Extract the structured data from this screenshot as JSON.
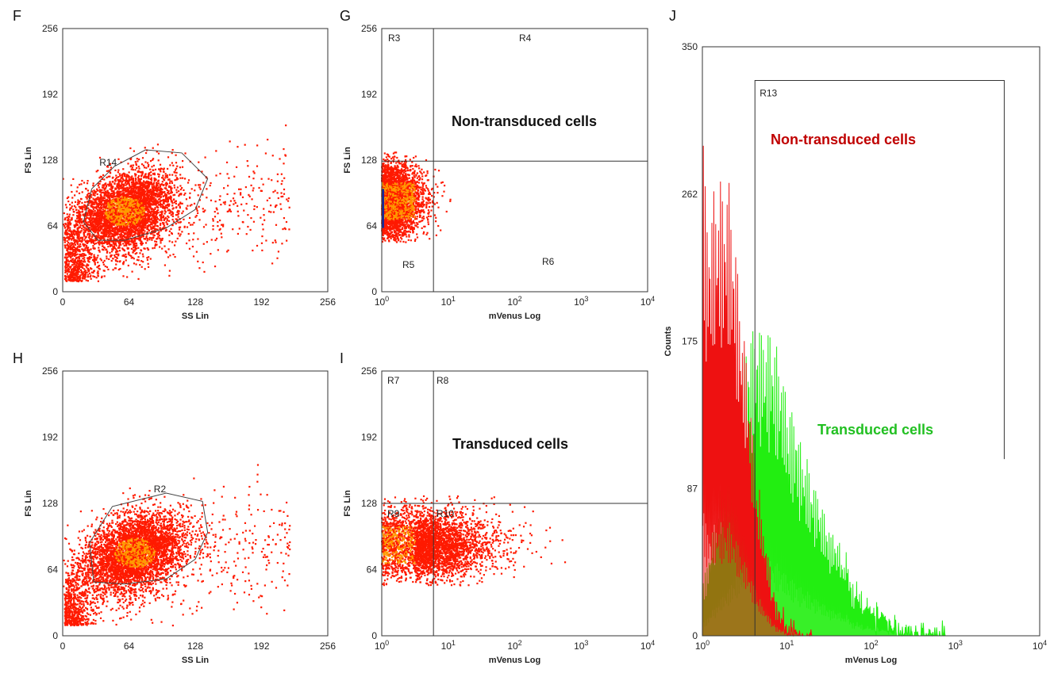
{
  "chart_data": [
    {
      "panel": "F",
      "type": "scatter",
      "xlabel": "SS Lin",
      "ylabel": "FS Lin",
      "xlim": [
        0,
        256
      ],
      "ylim": [
        0,
        256
      ],
      "x_scale": "linear",
      "xticks": [
        "0",
        "64",
        "128",
        "192",
        "256"
      ],
      "yticks": [
        "0",
        "64",
        "128",
        "192",
        "256"
      ],
      "gate": {
        "name": "R14",
        "shape": "polygon",
        "points": [
          [
            34,
            50
          ],
          [
            20,
            68
          ],
          [
            28,
            100
          ],
          [
            50,
            122
          ],
          [
            80,
            138
          ],
          [
            115,
            135
          ],
          [
            140,
            110
          ],
          [
            128,
            80
          ],
          [
            100,
            62
          ],
          [
            60,
            50
          ]
        ]
      },
      "dense_region": {
        "x_center": 60,
        "y_center": 78
      },
      "colors": {
        "points": "#ff1a00",
        "dense": "#ff9a00"
      }
    },
    {
      "panel": "G",
      "type": "scatter",
      "xlabel": "mVenus Log",
      "ylabel": "FS Lin",
      "xlim": [
        1,
        10000
      ],
      "ylim": [
        0,
        256
      ],
      "x_scale": "log",
      "xticks": [
        "10^0",
        "10^1",
        "10^2",
        "10^3",
        "10^4"
      ],
      "yticks": [
        "0",
        "64",
        "128",
        "192",
        "256"
      ],
      "quadrant_cut": {
        "x": 6,
        "y": 127
      },
      "quadrant_labels": [
        "R3",
        "R4",
        "R5",
        "R6"
      ],
      "annotation": "Non-transduced cells",
      "colors": {
        "points": "#ff1a00",
        "annotation": "#111111"
      }
    },
    {
      "panel": "H",
      "type": "scatter",
      "xlabel": "SS Lin",
      "ylabel": "FS Lin",
      "xlim": [
        0,
        256
      ],
      "ylim": [
        0,
        256
      ],
      "x_scale": "linear",
      "xticks": [
        "0",
        "64",
        "128",
        "192",
        "256"
      ],
      "yticks": [
        "0",
        "64",
        "128",
        "192",
        "256"
      ],
      "gate": {
        "name": "R2",
        "shape": "polygon",
        "points": [
          [
            30,
            52
          ],
          [
            26,
            90
          ],
          [
            48,
            125
          ],
          [
            100,
            138
          ],
          [
            135,
            130
          ],
          [
            140,
            100
          ],
          [
            128,
            74
          ],
          [
            100,
            55
          ],
          [
            60,
            50
          ]
        ]
      },
      "dense_region": {
        "x_center": 70,
        "y_center": 80
      },
      "colors": {
        "points": "#ff1a00",
        "dense": "#ff9a00"
      }
    },
    {
      "panel": "I",
      "type": "scatter",
      "xlabel": "mVenus Log",
      "ylabel": "FS Lin",
      "xlim": [
        1,
        10000
      ],
      "ylim": [
        0,
        256
      ],
      "x_scale": "log",
      "xticks": [
        "10^0",
        "10^1",
        "10^2",
        "10^3",
        "10^4"
      ],
      "yticks": [
        "0",
        "64",
        "128",
        "192",
        "256"
      ],
      "quadrant_cut": {
        "x": 6,
        "y": 128
      },
      "quadrant_labels": [
        "R7",
        "R8",
        "R9",
        "R10"
      ],
      "annotation": "Transduced cells",
      "colors": {
        "points": "#ff1a00",
        "annotation": "#111111"
      }
    },
    {
      "panel": "J",
      "type": "area",
      "xlabel": "mVenus Log",
      "ylabel": "Counts",
      "xlim": [
        1,
        10000
      ],
      "ylim": [
        0,
        350
      ],
      "x_scale": "log",
      "xticks": [
        "10^0",
        "10^1",
        "10^2",
        "10^3",
        "10^4"
      ],
      "yticks": [
        "0",
        "87",
        "175",
        "262",
        "350"
      ],
      "gate": {
        "name": "R13",
        "x_range": [
          4.2,
          3800
        ],
        "top": 330,
        "left_bottom": 0,
        "right_bottom": 105
      },
      "series": [
        {
          "name": "Non-transduced cells",
          "color": "#ee1111",
          "x": [
            1,
            1.1,
            1.25,
            1.4,
            1.6,
            1.8,
            2.0,
            2.3,
            2.6,
            3.0,
            3.5,
            4.0,
            4.6,
            5.3,
            6.0,
            7.0,
            8.0,
            10,
            12,
            15,
            20
          ],
          "y": [
            335,
            250,
            255,
            265,
            270,
            260,
            275,
            245,
            215,
            185,
            155,
            120,
            90,
            65,
            45,
            28,
            15,
            6,
            3,
            1,
            0
          ]
        },
        {
          "name": "Transduced cells",
          "color": "#22ee11",
          "x": [
            1,
            1.5,
            2,
            2.5,
            3,
            3.5,
            4,
            5,
            6,
            7,
            8,
            9,
            10,
            12,
            15,
            20,
            25,
            30,
            40,
            50,
            60,
            80,
            100,
            150,
            200,
            300,
            500,
            800
          ],
          "y": [
            30,
            75,
            110,
            140,
            160,
            175,
            182,
            183,
            180,
            175,
            165,
            150,
            140,
            125,
            110,
            92,
            80,
            68,
            55,
            45,
            36,
            25,
            18,
            10,
            6,
            3,
            1,
            0
          ]
        }
      ],
      "annotations": [
        {
          "text": "Non-transduced cells",
          "color": "#c00000"
        },
        {
          "text": "Transduced cells",
          "color": "#22c022"
        }
      ]
    }
  ]
}
